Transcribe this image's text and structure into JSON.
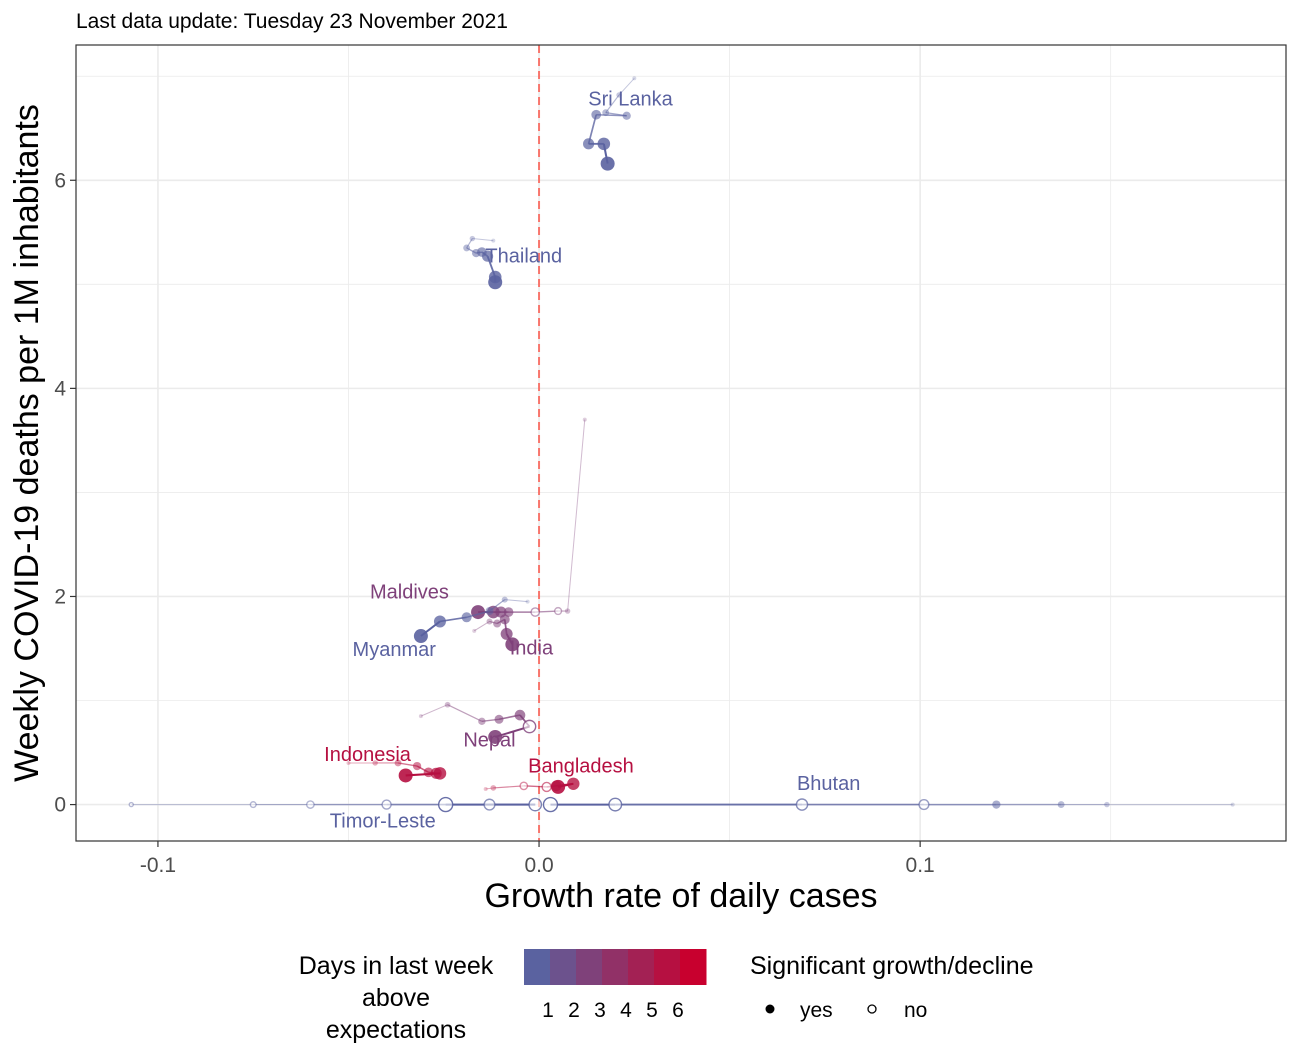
{
  "subtitle": "Last data update: Tuesday 23 November 2021",
  "chart_data": {
    "type": "scatter",
    "title": "",
    "subtitle": "Last data update: Tuesday 23 November 2021",
    "xlabel": "Growth rate of daily cases",
    "ylabel": "Weekly COVID-19 deaths per 1M inhabitants",
    "xlim": [
      -0.1215,
      0.196
    ],
    "ylim": [
      -0.35,
      7.3
    ],
    "x_ticks": [
      -0.1,
      0.0,
      0.1
    ],
    "x_tick_labels": [
      "-0.1",
      "0.0",
      "0.1"
    ],
    "y_ticks": [
      0,
      2,
      4,
      6
    ],
    "y_tick_labels": [
      "0",
      "2",
      "4",
      "6"
    ],
    "grid": true,
    "reference_line": {
      "x": 0,
      "style": "dashed",
      "color": "#f8766d"
    },
    "color_low": "#5a62a0",
    "color_high": "#c8002e",
    "legend_placement": "bottom",
    "legend_color": {
      "title": "Days in last week\nabove\nexpectations",
      "title_lines": [
        "Days in last week",
        "above",
        "expectations"
      ],
      "labels": [
        "1",
        "2",
        "3",
        "4",
        "5",
        "6"
      ],
      "swatches": [
        "#5a62a0",
        "#7c5a8c",
        "#8f5278",
        "#a24866",
        "#b53c52",
        "#c8002e"
      ]
    },
    "legend_shape": {
      "title": "Significant growth/decline",
      "items": [
        {
          "label": "yes",
          "filled": true
        },
        {
          "label": "no",
          "filled": false
        }
      ]
    },
    "series": [
      {
        "name": "Sri Lanka",
        "days": 0,
        "label_at": [
          0.024,
          6.72
        ],
        "x": [
          0.025,
          0.021,
          0.0175,
          0.023,
          0.015,
          0.013,
          0.017,
          0.018
        ],
        "y": [
          6.98,
          6.82,
          6.65,
          6.62,
          6.63,
          6.35,
          6.35,
          6.16
        ],
        "sig": [
          1,
          1,
          1,
          1,
          1,
          1,
          1,
          1
        ]
      },
      {
        "name": "Thailand",
        "days": 0,
        "label_at": [
          -0.004,
          5.21
        ],
        "x": [
          -0.012,
          -0.0175,
          -0.019,
          -0.0165,
          -0.015,
          -0.0135,
          -0.0115,
          -0.0115
        ],
        "y": [
          5.42,
          5.44,
          5.35,
          5.3,
          5.31,
          5.27,
          5.07,
          5.02
        ],
        "sig": [
          1,
          1,
          1,
          1,
          1,
          1,
          1,
          1
        ]
      },
      {
        "name": "Maldives",
        "days": 2,
        "label_at": [
          -0.034,
          1.98
        ],
        "x": [
          0.012,
          0.0075,
          0.005,
          -0.001,
          -0.008,
          -0.01,
          -0.012,
          -0.016
        ],
        "y": [
          3.7,
          1.86,
          1.86,
          1.85,
          1.85,
          1.85,
          1.85,
          1.85
        ],
        "sig": [
          1,
          1,
          0,
          0,
          1,
          1,
          1,
          1
        ]
      },
      {
        "name": "Myanmar",
        "days": 0,
        "label_at": [
          -0.038,
          1.43
        ],
        "x": [
          -0.003,
          -0.009,
          -0.013,
          -0.019,
          -0.026,
          -0.031
        ],
        "y": [
          1.95,
          1.97,
          1.86,
          1.8,
          1.76,
          1.62
        ],
        "sig": [
          1,
          1,
          1,
          1,
          1,
          1
        ]
      },
      {
        "name": "India",
        "days": 2,
        "label_at": [
          -0.002,
          1.44
        ],
        "x": [
          -0.017,
          -0.013,
          -0.011,
          -0.009,
          -0.0085,
          -0.007
        ],
        "y": [
          1.67,
          1.76,
          1.74,
          1.78,
          1.64,
          1.54
        ],
        "sig": [
          1,
          1,
          1,
          1,
          1,
          1
        ]
      },
      {
        "name": "Nepal",
        "days": 2,
        "label_at": [
          -0.013,
          0.56
        ],
        "x": [
          -0.031,
          -0.024,
          -0.015,
          -0.0105,
          -0.005,
          -0.0025,
          -0.0115
        ],
        "y": [
          0.85,
          0.96,
          0.8,
          0.82,
          0.86,
          0.75,
          0.65
        ],
        "sig": [
          1,
          1,
          1,
          1,
          1,
          0,
          1
        ]
      },
      {
        "name": "Indonesia",
        "days": 5,
        "label_at": [
          -0.045,
          0.42
        ],
        "x": [
          -0.05,
          -0.043,
          -0.037,
          -0.032,
          -0.029,
          -0.027,
          -0.026,
          -0.035
        ],
        "y": [
          0.4,
          0.4,
          0.4,
          0.37,
          0.31,
          0.3,
          0.3,
          0.28
        ],
        "sig": [
          1,
          1,
          1,
          1,
          1,
          1,
          1,
          1
        ]
      },
      {
        "name": "Bangladesh",
        "days": 5,
        "label_at": [
          0.011,
          0.31
        ],
        "x": [
          -0.014,
          -0.012,
          -0.004,
          0.002,
          0.0045,
          0.009,
          0.005
        ],
        "y": [
          0.15,
          0.16,
          0.18,
          0.17,
          0.18,
          0.2,
          0.17
        ],
        "sig": [
          1,
          1,
          0,
          0,
          1,
          1,
          1
        ]
      },
      {
        "name": "Bhutan",
        "days": 0,
        "label_at": [
          0.076,
          0.14
        ],
        "x": [
          0.182,
          0.149,
          0.137,
          0.12,
          0.101,
          0.069,
          0.02,
          0.003
        ],
        "y": [
          0,
          0,
          0,
          0,
          0,
          0,
          0,
          0
        ],
        "sig": [
          1,
          1,
          1,
          1,
          0,
          0,
          0,
          0
        ]
      },
      {
        "name": "Timor-Leste",
        "days": 0,
        "label_at": [
          -0.041,
          -0.22
        ],
        "x": [
          -0.107,
          -0.075,
          -0.06,
          -0.04,
          -0.013,
          -0.001,
          -0.0245
        ],
        "y": [
          0,
          0,
          0,
          0,
          0,
          0,
          0
        ],
        "sig": [
          0,
          0,
          0,
          0,
          0,
          0,
          0
        ]
      }
    ]
  }
}
